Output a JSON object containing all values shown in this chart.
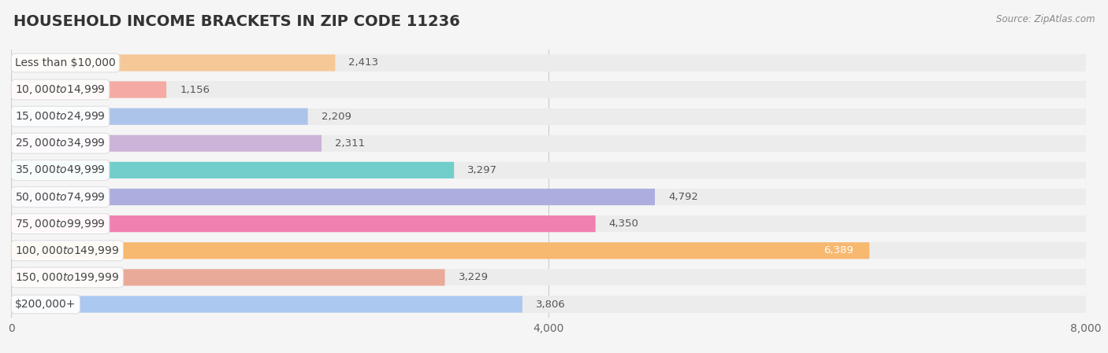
{
  "title": "HOUSEHOLD INCOME BRACKETS IN ZIP CODE 11236",
  "source": "Source: ZipAtlas.com",
  "categories": [
    "Less than $10,000",
    "$10,000 to $14,999",
    "$15,000 to $24,999",
    "$25,000 to $34,999",
    "$35,000 to $49,999",
    "$50,000 to $74,999",
    "$75,000 to $99,999",
    "$100,000 to $149,999",
    "$150,000 to $199,999",
    "$200,000+"
  ],
  "values": [
    2413,
    1156,
    2209,
    2311,
    3297,
    4792,
    4350,
    6389,
    3229,
    3806
  ],
  "bar_colors": [
    "#f7c897",
    "#f5aba3",
    "#adc4ea",
    "#ccb3d8",
    "#72ceca",
    "#adaddf",
    "#f080b0",
    "#f7b870",
    "#eaaa9a",
    "#aac8f0"
  ],
  "row_bg_color": "#f0f0f0",
  "xlim": [
    0,
    8000
  ],
  "xticks": [
    0,
    4000,
    8000
  ],
  "xticklabels": [
    "0",
    "4,000",
    "8,000"
  ],
  "background_color": "#f5f5f5",
  "title_fontsize": 14,
  "label_fontsize": 10,
  "value_fontsize": 9.5
}
